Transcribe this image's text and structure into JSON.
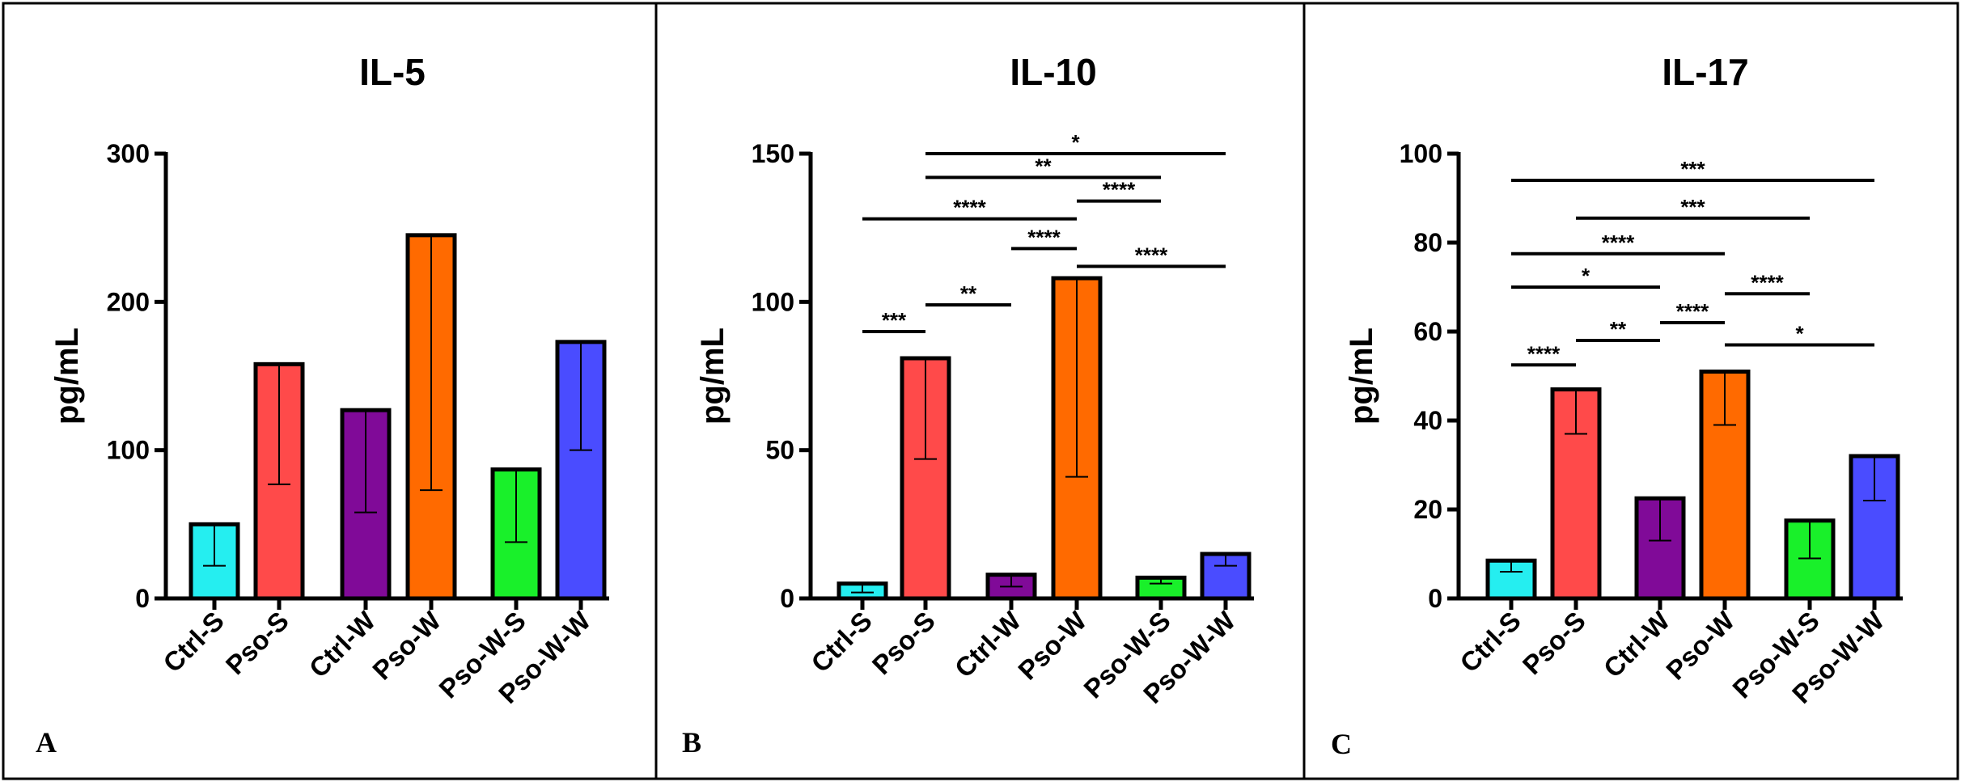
{
  "figure": {
    "colors": {
      "Ctrl-S": "#25eef0",
      "Pso-S": "#ff4a4a",
      "Ctrl-W": "#800a98",
      "Pso-W": "#ff6a00",
      "Pso-W-S": "#19f02a",
      "Pso-W-W": "#4a4cff",
      "errorbar": "#000000"
    }
  },
  "chart_data": [
    {
      "type": "bar",
      "panel_letter": "A",
      "title": "IL-5",
      "ylabel": "pg/mL",
      "xlabel": "",
      "ylim": [
        0,
        300
      ],
      "yticks": [
        0,
        100,
        200,
        300
      ],
      "categories": [
        "Ctrl-S",
        "Pso-S",
        "Ctrl-W",
        "Pso-W",
        "Pso-W-S",
        "Pso-W-W"
      ],
      "values": [
        50,
        158,
        127,
        245,
        87,
        173
      ],
      "err_low": [
        22,
        77,
        58,
        73,
        38,
        100
      ],
      "err_high": [
        50,
        158,
        127,
        245,
        87,
        173
      ],
      "significance": []
    },
    {
      "type": "bar",
      "panel_letter": "B",
      "title": "IL-10",
      "ylabel": "pg/mL",
      "xlabel": "",
      "ylim": [
        0,
        150
      ],
      "yticks": [
        0,
        50,
        100,
        150
      ],
      "categories": [
        "Ctrl-S",
        "Pso-S",
        "Ctrl-W",
        "Pso-W",
        "Pso-W-S",
        "Pso-W-W"
      ],
      "values": [
        5,
        81,
        8,
        108,
        7,
        15
      ],
      "err_low": [
        2,
        47,
        4,
        41,
        5,
        11
      ],
      "err_high": [
        5,
        81,
        8,
        108,
        7,
        15
      ],
      "significance": [
        {
          "from": "Pso-S",
          "to": "Pso-W-W",
          "label": "*",
          "level": 150
        },
        {
          "from": "Pso-S",
          "to": "Pso-W-S",
          "label": "**",
          "level": 142
        },
        {
          "from": "Pso-W",
          "to": "Pso-W-S",
          "label": "****",
          "level": 134
        },
        {
          "from": "Ctrl-S",
          "to": "Pso-W",
          "label": "****",
          "level": 128
        },
        {
          "from": "Ctrl-W",
          "to": "Pso-W",
          "label": "****",
          "level": 118
        },
        {
          "from": "Pso-W",
          "to": "Pso-W-W",
          "label": "****",
          "level": 112
        },
        {
          "from": "Pso-S",
          "to": "Ctrl-W",
          "label": "**",
          "level": 99
        },
        {
          "from": "Ctrl-S",
          "to": "Pso-S",
          "label": "***",
          "level": 90
        }
      ]
    },
    {
      "type": "bar",
      "panel_letter": "C",
      "title": "IL-17",
      "ylabel": "pg/mL",
      "xlabel": "",
      "ylim": [
        0,
        100
      ],
      "yticks": [
        0,
        20,
        40,
        60,
        80,
        100
      ],
      "categories": [
        "Ctrl-S",
        "Pso-S",
        "Ctrl-W",
        "Pso-W",
        "Pso-W-S",
        "Pso-W-W"
      ],
      "values": [
        8.5,
        47,
        22.5,
        51,
        17.5,
        32
      ],
      "err_low": [
        6,
        37,
        13,
        39,
        9,
        22
      ],
      "err_high": [
        8.5,
        47,
        22.5,
        51,
        17.5,
        32
      ],
      "significance": [
        {
          "from": "Ctrl-S",
          "to": "Pso-W-W",
          "label": "***",
          "level": 94
        },
        {
          "from": "Pso-S",
          "to": "Pso-W-S",
          "label": "***",
          "level": 85.5
        },
        {
          "from": "Ctrl-S",
          "to": "Pso-W",
          "label": "****",
          "level": 77.5
        },
        {
          "from": "Ctrl-S",
          "to": "Ctrl-W",
          "label": "*",
          "level": 70
        },
        {
          "from": "Pso-W",
          "to": "Pso-W-S",
          "label": "****",
          "level": 68.5
        },
        {
          "from": "Ctrl-W",
          "to": "Pso-W",
          "label": "****",
          "level": 62
        },
        {
          "from": "Pso-S",
          "to": "Ctrl-W",
          "label": "**",
          "level": 58
        },
        {
          "from": "Pso-W",
          "to": "Pso-W-W",
          "label": "*",
          "level": 57
        },
        {
          "from": "Ctrl-S",
          "to": "Pso-S",
          "label": "****",
          "level": 52.5
        }
      ]
    }
  ]
}
